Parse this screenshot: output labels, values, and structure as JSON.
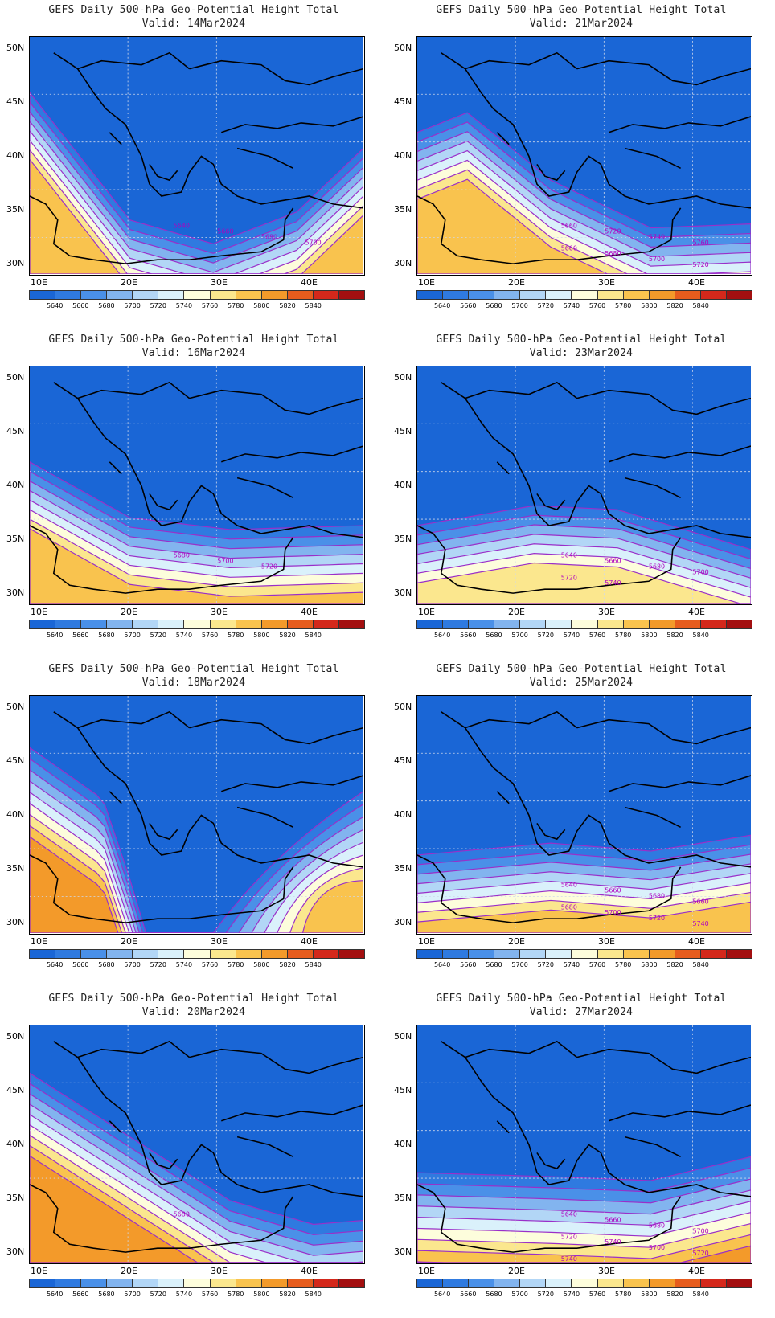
{
  "title": "GEFS Daily 500-hPa Geo-Potential Height Total",
  "y_ticks": [
    "50N",
    "45N",
    "40N",
    "35N",
    "30N"
  ],
  "x_ticks": [
    "10E",
    "20E",
    "30E",
    "40E"
  ],
  "colorbar": {
    "colors": [
      "#1a66d6",
      "#2f7ae0",
      "#4a90e8",
      "#82b4ef",
      "#b2d6f6",
      "#daf1fb",
      "#fdfddc",
      "#fbe78e",
      "#f9c34e",
      "#f39a2a",
      "#e65c1d",
      "#d4281b",
      "#a30f10"
    ],
    "labels": [
      "5640",
      "5660",
      "5680",
      "5700",
      "5720",
      "5740",
      "5760",
      "5780",
      "5800",
      "5820",
      "5840"
    ]
  },
  "panels": [
    {
      "valid": "Valid: 14Mar2024",
      "labels": [
        "5640",
        "5660",
        "5680",
        "5700"
      ]
    },
    {
      "valid": "Valid: 21Mar2024",
      "labels": [
        "5660",
        "5720",
        "5740",
        "5760",
        "5660",
        "5680",
        "5700",
        "5720"
      ]
    },
    {
      "valid": "Valid: 16Mar2024",
      "labels": [
        "5680",
        "5700",
        "5720"
      ]
    },
    {
      "valid": "Valid: 23Mar2024",
      "labels": [
        "5640",
        "5660",
        "5680",
        "5700",
        "5720",
        "5740"
      ]
    },
    {
      "valid": "Valid: 18Mar2024",
      "labels": []
    },
    {
      "valid": "Valid: 25Mar2024",
      "labels": [
        "5640",
        "5660",
        "5680",
        "5660",
        "5680",
        "5700",
        "5720",
        "5740"
      ]
    },
    {
      "valid": "Valid: 20Mar2024",
      "labels": [
        "5680"
      ]
    },
    {
      "valid": "Valid: 27Mar2024",
      "labels": [
        "5640",
        "5660",
        "5680",
        "5700",
        "5720",
        "5740",
        "5700",
        "5720",
        "5740"
      ]
    }
  ]
}
